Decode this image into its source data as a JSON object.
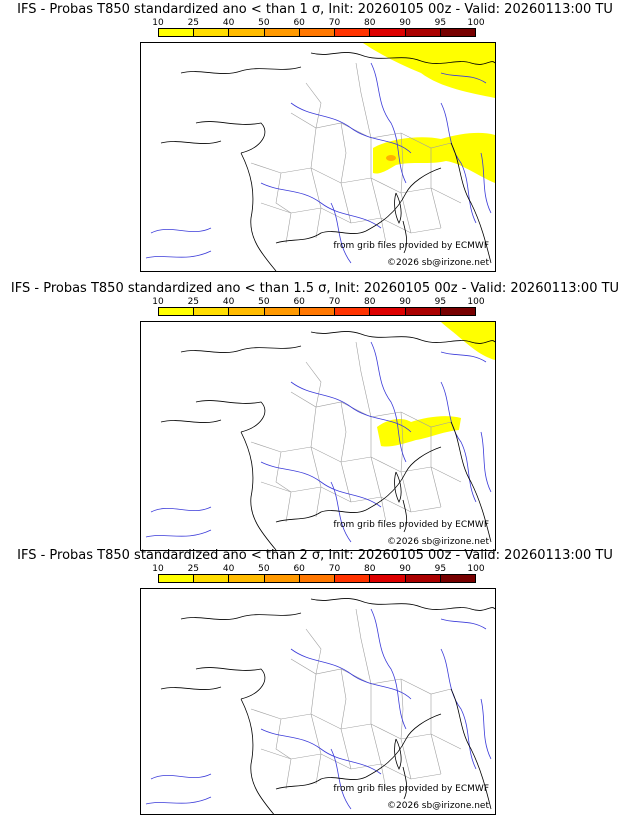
{
  "colorbar": {
    "ticks": [
      "10",
      "25",
      "40",
      "50",
      "60",
      "70",
      "80",
      "90",
      "95",
      "100"
    ],
    "colors": [
      "#ffff00",
      "#ffdd00",
      "#ffbb00",
      "#ff9900",
      "#ff7700",
      "#ff3300",
      "#dd0000",
      "#aa0000",
      "#770000"
    ]
  },
  "panels": [
    {
      "title": "IFS - Probas T850  standardized ano < than 1 σ, Init: 20260105 00z - Valid: 20260113:00 TU",
      "source": "from grib files provided by ECMWF",
      "copyright": "©2026 sb@irizone.net",
      "probability_areas": [
        "northeast-yellow",
        "alps-yellow",
        "alps-orange-spot"
      ]
    },
    {
      "title": "IFS - Probas T850  standardized ano < than 1.5 σ, Init: 20260105 00z - Valid: 20260113:00 TU",
      "source": "from grib files provided by ECMWF",
      "copyright": "©2026 sb@irizone.net",
      "probability_areas": [
        "northeast-corner-yellow",
        "alps-yellow"
      ]
    },
    {
      "title": "IFS - Probas T850  standardized ano < than 2 σ, Init: 20260105 00z - Valid: 20260113:00 TU",
      "source": "from grib files provided by ECMWF",
      "copyright": "©2026 sb@irizone.net",
      "probability_areas": []
    }
  ]
}
